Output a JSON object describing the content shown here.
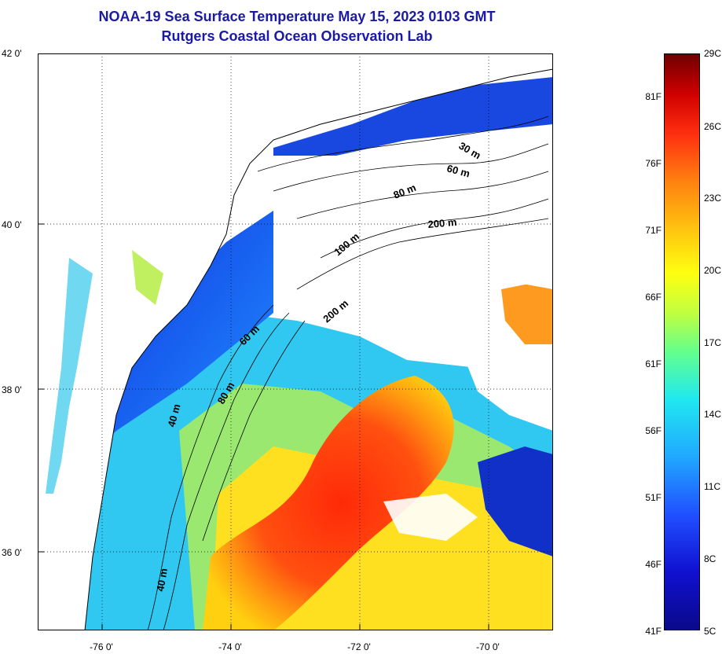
{
  "title": "NOAA-19 Sea Surface Temperature May 15, 2023 0103 GMT",
  "subtitle": "Rutgers Coastal Ocean Observation Lab",
  "map": {
    "lat_range": [
      35,
      42
    ],
    "lon_range": [
      -77,
      -69
    ],
    "lat_labels": [
      "42 0'",
      "40 0'",
      "38 0'",
      "36 0'"
    ],
    "lon_labels": [
      "-76 0'",
      "-74 0'",
      "-72 0'",
      "-70 0'"
    ],
    "contour_labels": [
      "30 m",
      "60 m",
      "80 m",
      "200 m",
      "100 m",
      "200 m",
      "60 m",
      "80 m",
      "40 m",
      "40 m"
    ]
  },
  "colorbar": {
    "fahrenheit": [
      "81F",
      "76F",
      "71F",
      "66F",
      "61F",
      "56F",
      "51F",
      "46F",
      "41F"
    ],
    "celsius": [
      "29C",
      "26C",
      "23C",
      "20C",
      "17C",
      "14C",
      "11C",
      "8C",
      "5C"
    ],
    "colors": [
      "#0a0a8a",
      "#2050ff",
      "#20e8f0",
      "#c0ff40",
      "#ffff10",
      "#ff8010",
      "#d00000",
      "#700000"
    ]
  }
}
